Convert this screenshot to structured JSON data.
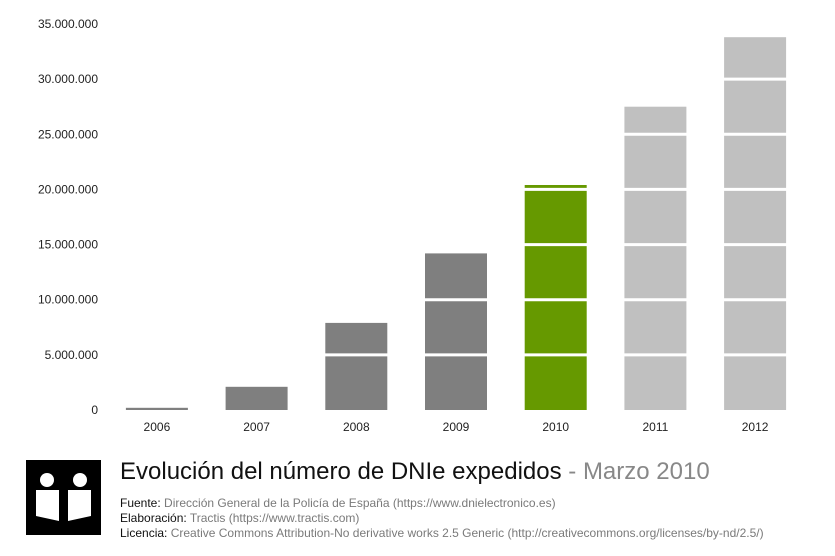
{
  "chart_data": {
    "type": "bar",
    "categories": [
      "2006",
      "2007",
      "2008",
      "2009",
      "2010",
      "2011",
      "2012"
    ],
    "values": [
      200000,
      2100000,
      7900000,
      14200000,
      20400000,
      27500000,
      33800000
    ],
    "ylim": [
      0,
      35000000
    ],
    "yticks": [
      "0",
      "5.000.000",
      "10.000.000",
      "15.000.000",
      "20.000.000",
      "25.000.000",
      "30.000.000",
      "35.000.000"
    ],
    "bar_colors": [
      "#7f7f7f",
      "#7f7f7f",
      "#7f7f7f",
      "#7f7f7f",
      "#669900",
      "#c0c0c0",
      "#c0c0c0"
    ],
    "grid": true,
    "title": "Evolución del número de DNIe expedidos",
    "subtitle": "Marzo 2010"
  },
  "footer": {
    "title_sep": " - ",
    "source_label": "Fuente:",
    "source_value": "Dirección General de la Policía de España (https://www.dnielectronico.es)",
    "made_label": "Elaboración:",
    "made_value": "Tractis (https://www.tractis.com)",
    "license_label": "Licencia:",
    "license_value": "Creative Commons Attribution-No derivative works 2.5 Generic (http://creativecommons.org/licenses/by-nd/2.5/)"
  }
}
